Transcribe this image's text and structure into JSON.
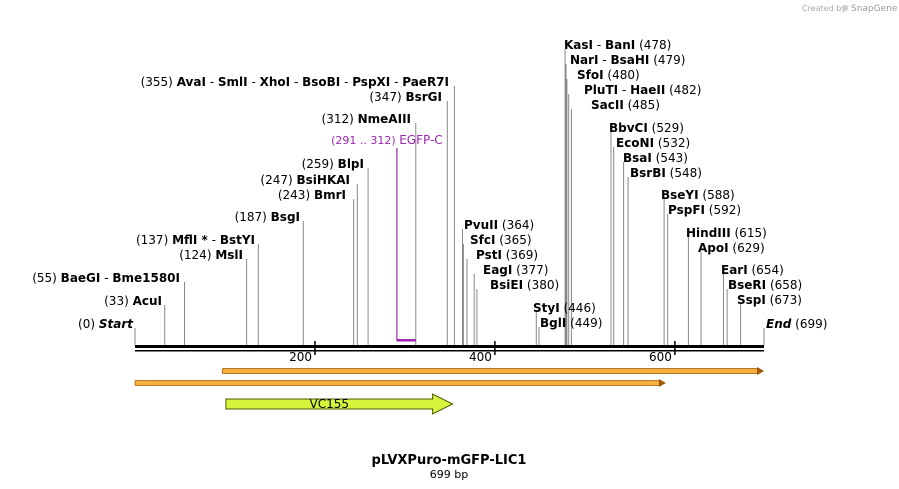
{
  "app": {
    "credit_prefix": "Created by",
    "credit_brand": "SnapGene"
  },
  "plasmid": {
    "name": "pLVXPuro-mGFP-LIC1",
    "length_label": "699 bp",
    "length": 699
  },
  "axis": {
    "ticks": [
      {
        "value": 200,
        "label": "200"
      },
      {
        "value": 400,
        "label": "400"
      },
      {
        "value": 600,
        "label": "600"
      }
    ]
  },
  "sites": [
    {
      "pos": 0,
      "pos_label": "(0)",
      "names": [
        "Start"
      ],
      "italic": true
    },
    {
      "pos": 33,
      "pos_label": "(33)",
      "names": [
        "AcuI"
      ]
    },
    {
      "pos": 55,
      "pos_label": "(55)",
      "names": [
        "BaeGI",
        "Bme1580I"
      ]
    },
    {
      "pos": 124,
      "pos_label": "(124)",
      "names": [
        "MslI"
      ]
    },
    {
      "pos": 137,
      "pos_label": "(137)",
      "names": [
        "MflI *",
        "BstYI"
      ]
    },
    {
      "pos": 187,
      "pos_label": "(187)",
      "names": [
        "BsgI"
      ]
    },
    {
      "pos": 243,
      "pos_label": "(243)",
      "names": [
        "BmrI"
      ]
    },
    {
      "pos": 247,
      "pos_label": "(247)",
      "names": [
        "BsiHKAI"
      ]
    },
    {
      "pos": 259,
      "pos_label": "(259)",
      "names": [
        "BlpI"
      ]
    },
    {
      "pos": 312,
      "pos_label": "(312)",
      "names": [
        "NmeAIII"
      ]
    },
    {
      "pos": 347,
      "pos_label": "(347)",
      "names": [
        "BsrGI"
      ]
    },
    {
      "pos": 355,
      "pos_label": "(355)",
      "names": [
        "AvaI",
        "SmlI",
        "XhoI",
        "BsoBI",
        "PspXI",
        "PaeR7I"
      ]
    },
    {
      "pos": 364,
      "pos_label": "(364)",
      "names": [
        "PvuII"
      ]
    },
    {
      "pos": 365,
      "pos_label": "(365)",
      "names": [
        "SfcI"
      ]
    },
    {
      "pos": 369,
      "pos_label": "(369)",
      "names": [
        "PstI"
      ]
    },
    {
      "pos": 377,
      "pos_label": "(377)",
      "names": [
        "EagI"
      ]
    },
    {
      "pos": 380,
      "pos_label": "(380)",
      "names": [
        "BsiEI"
      ]
    },
    {
      "pos": 446,
      "pos_label": "(446)",
      "names": [
        "StyI"
      ]
    },
    {
      "pos": 449,
      "pos_label": "(449)",
      "names": [
        "BglI"
      ]
    },
    {
      "pos": 478,
      "pos_label": "(478)",
      "names": [
        "KasI",
        "BanI"
      ]
    },
    {
      "pos": 479,
      "pos_label": "(479)",
      "names": [
        "NarI",
        "BsaHI"
      ]
    },
    {
      "pos": 480,
      "pos_label": "(480)",
      "names": [
        "SfoI"
      ]
    },
    {
      "pos": 482,
      "pos_label": "(482)",
      "names": [
        "PluTI",
        "HaeII"
      ]
    },
    {
      "pos": 485,
      "pos_label": "(485)",
      "names": [
        "SacII"
      ]
    },
    {
      "pos": 529,
      "pos_label": "(529)",
      "names": [
        "BbvCI"
      ]
    },
    {
      "pos": 532,
      "pos_label": "(532)",
      "names": [
        "EcoNI"
      ]
    },
    {
      "pos": 543,
      "pos_label": "(543)",
      "names": [
        "BsaI"
      ]
    },
    {
      "pos": 548,
      "pos_label": "(548)",
      "names": [
        "BsrBI"
      ]
    },
    {
      "pos": 588,
      "pos_label": "(588)",
      "names": [
        "BseYI"
      ]
    },
    {
      "pos": 592,
      "pos_label": "(592)",
      "names": [
        "PspFI"
      ]
    },
    {
      "pos": 615,
      "pos_label": "(615)",
      "names": [
        "HindIII"
      ]
    },
    {
      "pos": 629,
      "pos_label": "(629)",
      "names": [
        "ApoI"
      ]
    },
    {
      "pos": 654,
      "pos_label": "(654)",
      "names": [
        "EarI"
      ]
    },
    {
      "pos": 658,
      "pos_label": "(658)",
      "names": [
        "BseRI"
      ]
    },
    {
      "pos": 673,
      "pos_label": "(673)",
      "names": [
        "SspI"
      ]
    },
    {
      "pos": 699,
      "pos_label": "(699)",
      "names": [
        "End"
      ],
      "italic": true
    }
  ],
  "feature": {
    "range_label": "(291 .. 312)",
    "name": "EGFP-C",
    "start": 291,
    "end": 312,
    "color": "#9c27b0"
  },
  "primer": {
    "name": "VC155",
    "start": 101,
    "end": 353,
    "color": "#d4f53c"
  },
  "orange_tracks": [
    {
      "start": 97,
      "end": 699,
      "direction": "right",
      "color": "#f5b041"
    },
    {
      "start": 0,
      "end": 590,
      "direction": "right",
      "color": "#f5b041"
    }
  ],
  "colors": {
    "backbone": "#000000",
    "label_line": "#888888"
  }
}
